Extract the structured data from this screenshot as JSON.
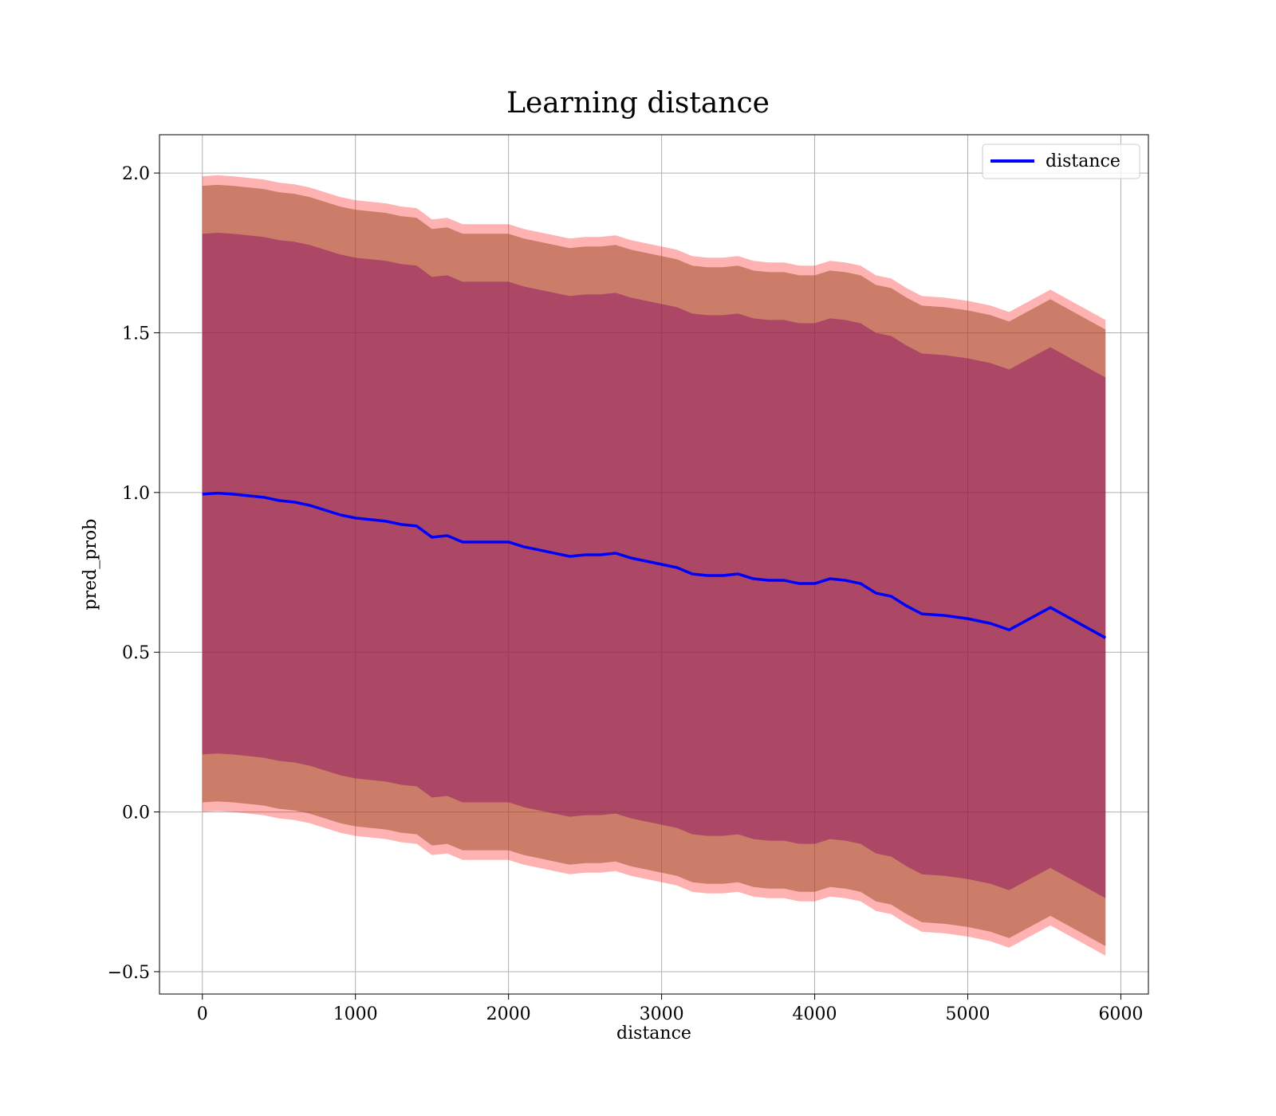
{
  "chart_data": {
    "type": "line",
    "title": "Learning distance",
    "xlabel": "distance",
    "ylabel": "pred_prob",
    "xlim": [
      -280,
      6180
    ],
    "ylim": [
      -0.57,
      2.12
    ],
    "xticks": [
      0,
      1000,
      2000,
      3000,
      4000,
      5000,
      6000
    ],
    "xtick_labels": [
      "0",
      "1000",
      "2000",
      "3000",
      "4000",
      "5000",
      "6000"
    ],
    "yticks": [
      -0.5,
      0.0,
      0.5,
      1.0,
      1.5,
      2.0
    ],
    "ytick_labels": [
      "−0.5",
      "0.0",
      "0.5",
      "1.0",
      "1.5",
      "2.0"
    ],
    "grid": true,
    "legend_position": "top-right",
    "colors": {
      "line": "#0000ff",
      "outer_band": "#ff0000",
      "middle_band": "#a0522d",
      "inner_band": "#800060"
    },
    "x": [
      0,
      100,
      200,
      300,
      400,
      500,
      600,
      700,
      800,
      900,
      1000,
      1100,
      1200,
      1300,
      1400,
      1500,
      1600,
      1700,
      1800,
      1900,
      2000,
      2100,
      2200,
      2300,
      2400,
      2500,
      2600,
      2700,
      2800,
      2900,
      3000,
      3100,
      3200,
      3300,
      3400,
      3500,
      3600,
      3700,
      3800,
      3900,
      4000,
      4100,
      4200,
      4300,
      4400,
      4500,
      4600,
      4700,
      4850,
      5000,
      5150,
      5270,
      5540,
      5900
    ],
    "series": [
      {
        "name": "distance",
        "values": [
          0.995,
          0.998,
          0.995,
          0.99,
          0.985,
          0.975,
          0.97,
          0.96,
          0.945,
          0.93,
          0.92,
          0.915,
          0.91,
          0.9,
          0.895,
          0.86,
          0.865,
          0.845,
          0.845,
          0.845,
          0.845,
          0.83,
          0.82,
          0.81,
          0.8,
          0.805,
          0.805,
          0.81,
          0.795,
          0.785,
          0.775,
          0.765,
          0.745,
          0.74,
          0.74,
          0.745,
          0.73,
          0.725,
          0.725,
          0.715,
          0.715,
          0.73,
          0.725,
          0.715,
          0.685,
          0.675,
          0.645,
          0.62,
          0.615,
          0.605,
          0.59,
          0.57,
          0.64,
          0.545
        ]
      }
    ],
    "band_offsets": {
      "outer": 0.995,
      "middle": 0.965,
      "inner": 0.815
    }
  }
}
